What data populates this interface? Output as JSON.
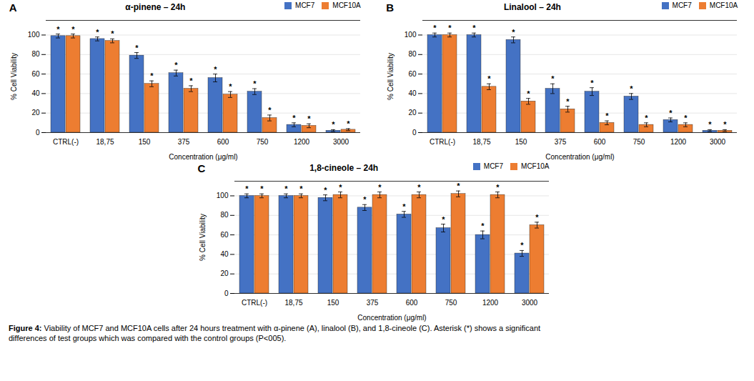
{
  "chart_data": [
    {
      "type": "bar",
      "label": "A",
      "title": "α-pinene – 24h",
      "xlabel": "Concentration (μg/ml)",
      "ylabel": "% Cell Viability",
      "categories": [
        "CTRL(-)",
        "18,75",
        "150",
        "375",
        "600",
        "750",
        "1200",
        "3000"
      ],
      "series": [
        {
          "name": "MCF7",
          "color": "#4472C4",
          "values": [
            99,
            96,
            79,
            61,
            56,
            42,
            8,
            2
          ],
          "errors": [
            2,
            2,
            3,
            3,
            4,
            3,
            2,
            1
          ],
          "annotations": [
            "*",
            "*",
            "*",
            "*",
            "*",
            "*",
            "*",
            "*"
          ]
        },
        {
          "name": "MCF10A",
          "color": "#ED7D31",
          "values": [
            99,
            94,
            50,
            45,
            39,
            15,
            7,
            3
          ],
          "errors": [
            2,
            2,
            3,
            3,
            3,
            3,
            2,
            1
          ],
          "annotations": [
            "*",
            "*",
            "*",
            "*",
            "*",
            "*",
            "*",
            "*"
          ]
        }
      ],
      "ylim": [
        0,
        115
      ],
      "yticks": [
        0,
        20,
        40,
        60,
        80,
        100
      ],
      "grid": true,
      "legend": "upper right"
    },
    {
      "type": "bar",
      "label": "B",
      "title": "Linalool – 24h",
      "xlabel": "Concentration (μg/ml)",
      "ylabel": "% Cell Viability",
      "categories": [
        "CTRL(-)",
        "18,75",
        "150",
        "375",
        "600",
        "750",
        "1200",
        "3000"
      ],
      "series": [
        {
          "name": "MCF7",
          "color": "#4472C4",
          "values": [
            100,
            100,
            95,
            45,
            42,
            37,
            13,
            2
          ],
          "errors": [
            2,
            2,
            3,
            5,
            4,
            3,
            2,
            1
          ],
          "annotations": [
            "*",
            "*",
            "*",
            "*",
            "*",
            "*",
            "*",
            "*"
          ]
        },
        {
          "name": "MCF10A",
          "color": "#ED7D31",
          "values": [
            100,
            47,
            32,
            24,
            10,
            8,
            8,
            2
          ],
          "errors": [
            2,
            3,
            3,
            3,
            2,
            2,
            2,
            1
          ],
          "annotations": [
            "*",
            "*",
            "*",
            "*",
            "*",
            "*",
            "*",
            "*"
          ]
        }
      ],
      "ylim": [
        0,
        115
      ],
      "yticks": [
        0,
        20,
        40,
        60,
        80,
        100
      ],
      "grid": true,
      "legend": "upper right"
    },
    {
      "type": "bar",
      "label": "C",
      "title": "1,8-cineole – 24h",
      "xlabel": "Concentration (μg/ml)",
      "ylabel": "% Cell Viability",
      "categories": [
        "CTRL(-)",
        "18,75",
        "150",
        "375",
        "600",
        "750",
        "1200",
        "3000"
      ],
      "series": [
        {
          "name": "MCF7",
          "color": "#4472C4",
          "values": [
            100,
            100,
            98,
            88,
            81,
            67,
            60,
            41
          ],
          "errors": [
            2,
            2,
            3,
            3,
            3,
            4,
            4,
            3
          ],
          "annotations": [
            "*",
            "*",
            "*",
            "*",
            "*",
            "*",
            "*",
            "*"
          ]
        },
        {
          "name": "MCF10A",
          "color": "#ED7D31",
          "values": [
            100,
            100,
            101,
            101,
            101,
            102,
            101,
            70
          ],
          "errors": [
            2,
            2,
            3,
            3,
            3,
            3,
            3,
            3
          ],
          "annotations": [
            "*",
            "*",
            "*",
            "*",
            "*",
            "*",
            "*",
            "*"
          ]
        }
      ],
      "ylim": [
        0,
        115
      ],
      "yticks": [
        0,
        20,
        40,
        60,
        80,
        100
      ],
      "grid": true,
      "legend": "upper right"
    }
  ],
  "caption": {
    "bold": "Figure 4:",
    "text": " Viability of MCF7 and MCF10A cells after 24 hours treatment with α-pinene (A), linalool (B), and 1,8-cineole (C). Asterisk (*) shows a significant\ndifferences of test groups which was compared with the control groups (P<005)."
  }
}
